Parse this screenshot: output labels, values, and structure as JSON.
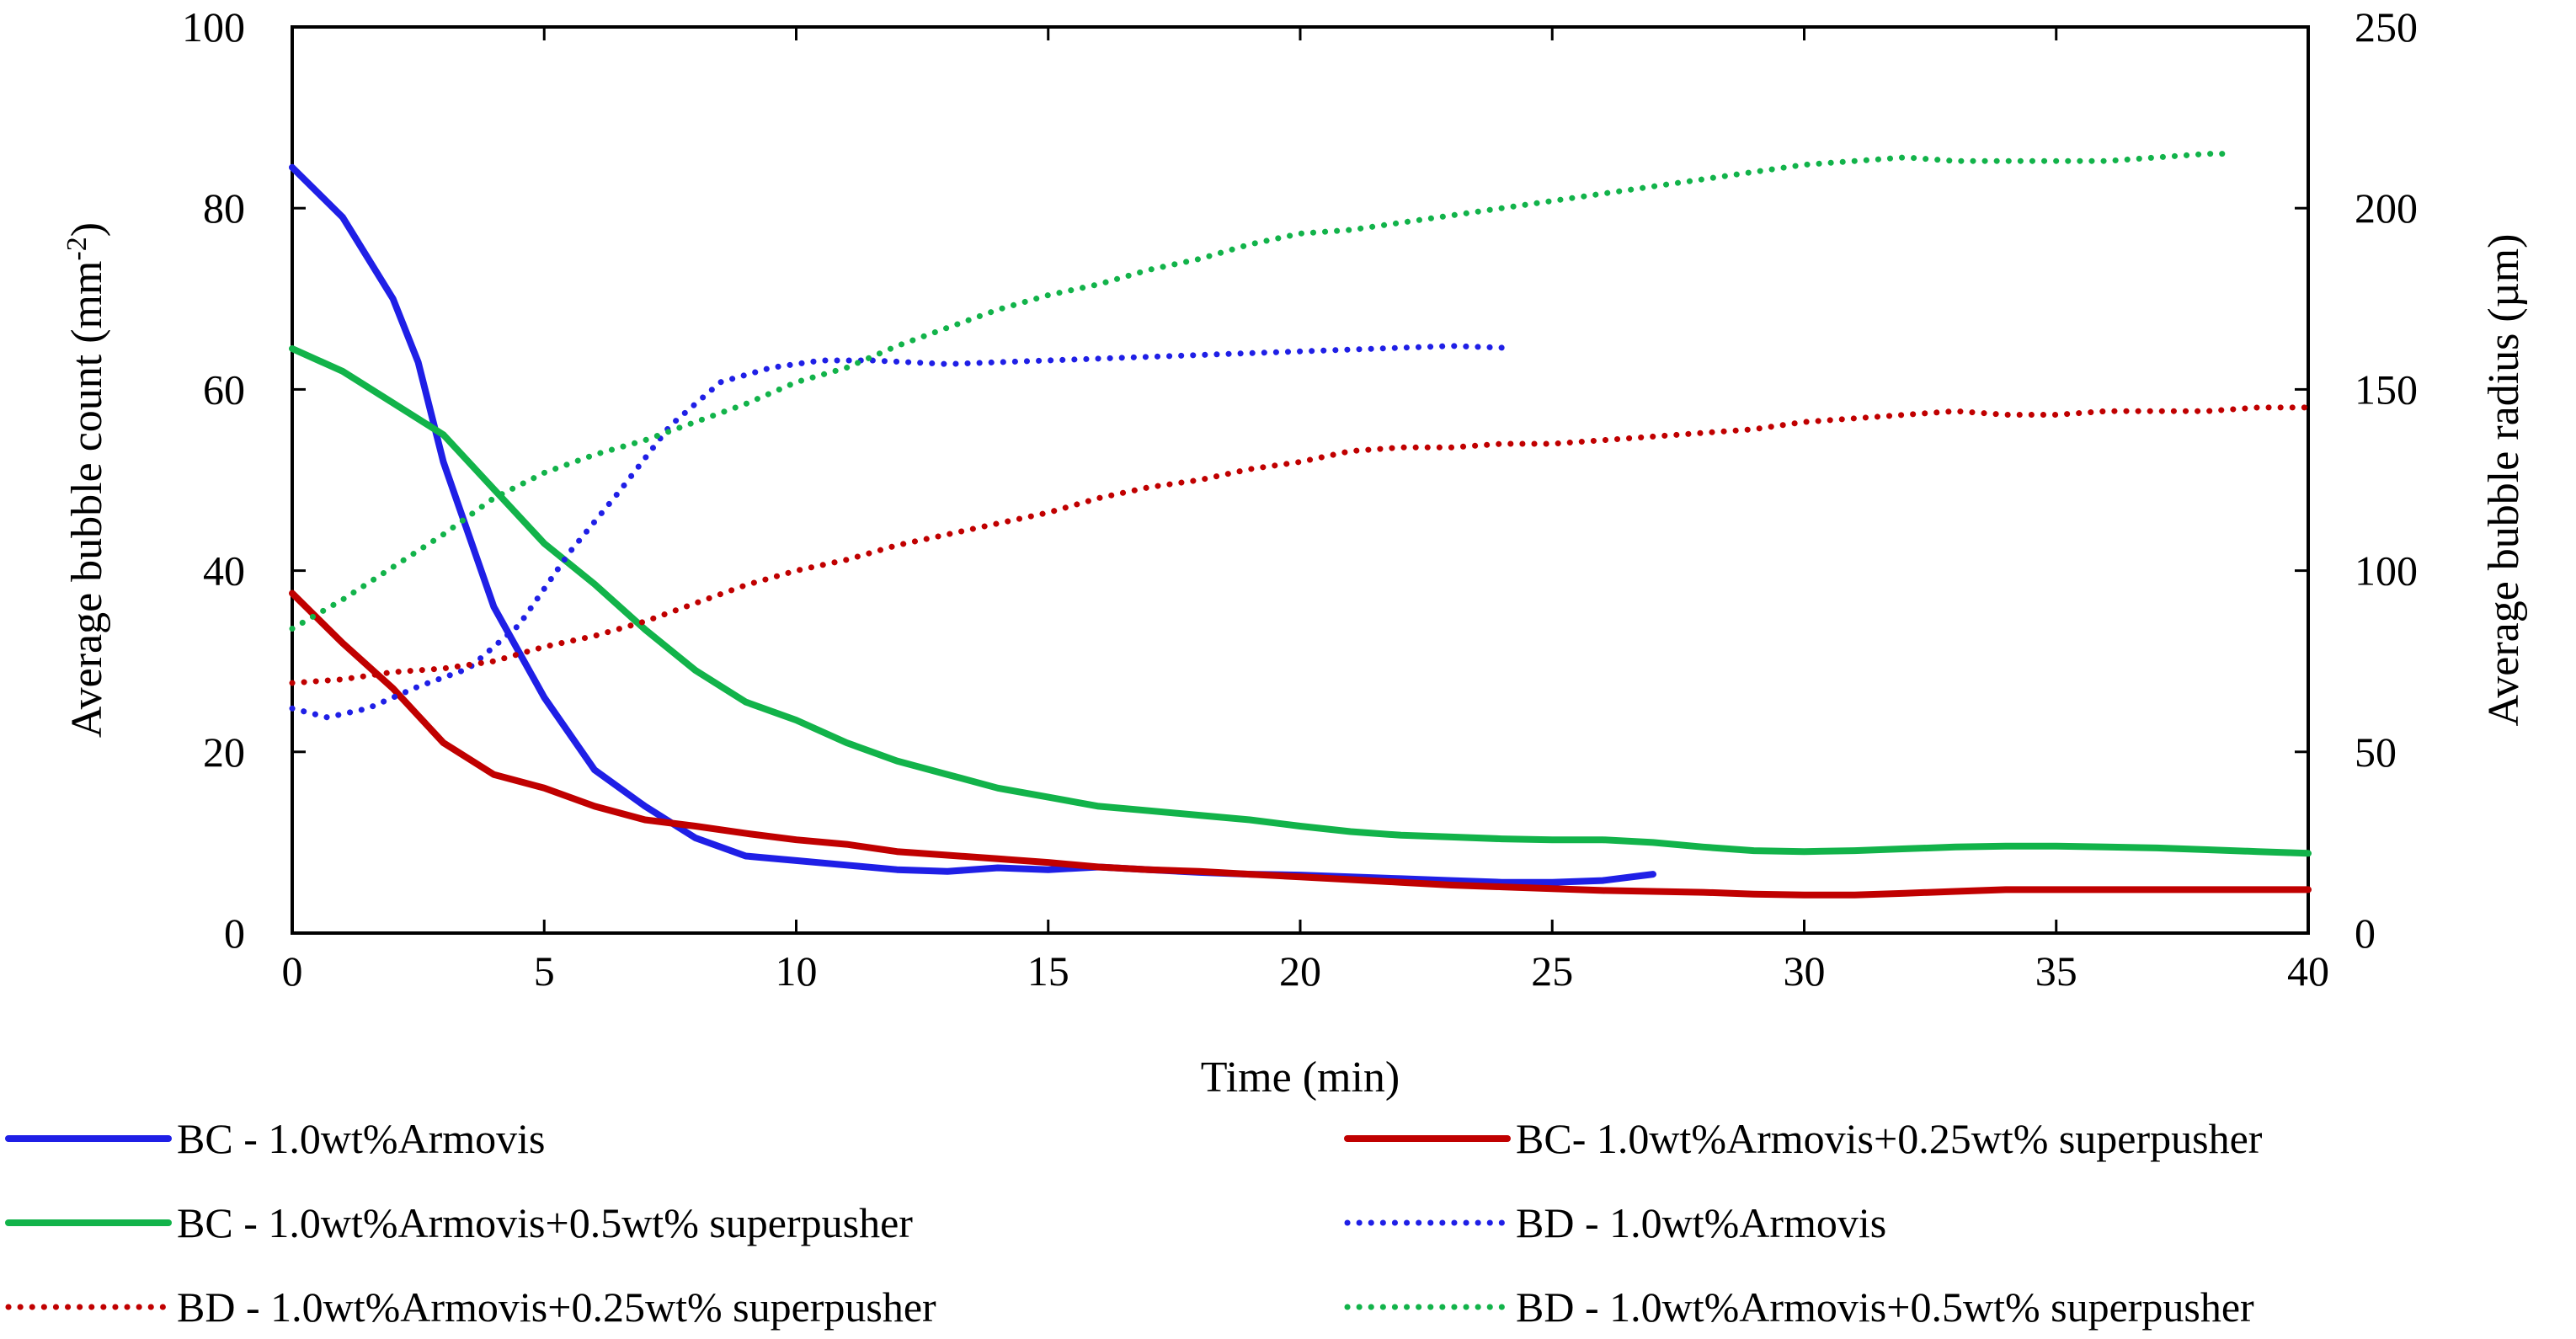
{
  "chart_data": {
    "type": "line",
    "xlabel": "Time (min)",
    "ylabel_left_main": "Average bubble count (mm",
    "ylabel_left_sup": "-2",
    "ylabel_left_tail": ")",
    "ylabel_right": "Average bubble radius (µm)",
    "xlim": [
      0,
      40
    ],
    "ylim_left": [
      0,
      100
    ],
    "ylim_right": [
      0,
      250
    ],
    "x_ticks": [
      "0",
      "5",
      "10",
      "15",
      "20",
      "25",
      "30",
      "35",
      "40"
    ],
    "y_left_ticks": [
      "0",
      "20",
      "40",
      "60",
      "80",
      "100"
    ],
    "y_right_ticks": [
      "0",
      "50",
      "100",
      "150",
      "200",
      "250"
    ],
    "grid": false,
    "legend_position": "bottom",
    "series": [
      {
        "name": "BC - 1.0wt%Armovis",
        "color": "#1f1fe6",
        "dashed": false,
        "axis": "left",
        "points": [
          [
            0,
            84.5
          ],
          [
            1,
            79
          ],
          [
            2,
            70
          ],
          [
            2.5,
            63
          ],
          [
            3,
            52
          ],
          [
            4,
            36
          ],
          [
            5,
            26
          ],
          [
            6,
            18
          ],
          [
            7,
            14
          ],
          [
            8,
            10.5
          ],
          [
            9,
            8.5
          ],
          [
            10,
            8
          ],
          [
            11,
            7.5
          ],
          [
            12,
            7
          ],
          [
            13,
            6.8
          ],
          [
            14,
            7.2
          ],
          [
            15,
            7
          ],
          [
            16,
            7.3
          ],
          [
            17,
            7
          ],
          [
            18,
            6.7
          ],
          [
            19,
            6.5
          ],
          [
            20,
            6.4
          ],
          [
            21,
            6.2
          ],
          [
            22,
            6
          ],
          [
            23,
            5.8
          ],
          [
            24,
            5.6
          ],
          [
            25,
            5.6
          ],
          [
            26,
            5.8
          ],
          [
            27,
            6.5
          ]
        ]
      },
      {
        "name": "BC- 1.0wt%Armovis+0.25wt% superpusher",
        "color": "#c00000",
        "dashed": false,
        "axis": "left",
        "points": [
          [
            0,
            37.5
          ],
          [
            1,
            32
          ],
          [
            2,
            27
          ],
          [
            2.5,
            24
          ],
          [
            3,
            21
          ],
          [
            4,
            17.5
          ],
          [
            5,
            16
          ],
          [
            6,
            14
          ],
          [
            7,
            12.5
          ],
          [
            8,
            11.8
          ],
          [
            9,
            11
          ],
          [
            10,
            10.3
          ],
          [
            11,
            9.8
          ],
          [
            12,
            9
          ],
          [
            13,
            8.6
          ],
          [
            14,
            8.2
          ],
          [
            15,
            7.8
          ],
          [
            16,
            7.3
          ],
          [
            17,
            7
          ],
          [
            18,
            6.8
          ],
          [
            19,
            6.5
          ],
          [
            20,
            6.2
          ],
          [
            21,
            5.9
          ],
          [
            22,
            5.6
          ],
          [
            23,
            5.3
          ],
          [
            24,
            5.1
          ],
          [
            25,
            4.9
          ],
          [
            26,
            4.7
          ],
          [
            27,
            4.6
          ],
          [
            28,
            4.5
          ],
          [
            29,
            4.3
          ],
          [
            30,
            4.2
          ],
          [
            31,
            4.2
          ],
          [
            32,
            4.4
          ],
          [
            33,
            4.6
          ],
          [
            34,
            4.8
          ],
          [
            35,
            4.8
          ],
          [
            36,
            4.8
          ],
          [
            37,
            4.8
          ],
          [
            38,
            4.8
          ],
          [
            39,
            4.8
          ],
          [
            40,
            4.8
          ]
        ]
      },
      {
        "name": "BC -  1.0wt%Armovis+0.5wt% superpusher",
        "color": "#12b34a",
        "dashed": false,
        "axis": "left",
        "points": [
          [
            0,
            64.5
          ],
          [
            1,
            62
          ],
          [
            2,
            58.5
          ],
          [
            3,
            55
          ],
          [
            4,
            49
          ],
          [
            5,
            43
          ],
          [
            6,
            38.5
          ],
          [
            7,
            33.5
          ],
          [
            8,
            29
          ],
          [
            9,
            25.5
          ],
          [
            10,
            23.5
          ],
          [
            11,
            21
          ],
          [
            12,
            19
          ],
          [
            13,
            17.5
          ],
          [
            14,
            16
          ],
          [
            15,
            15
          ],
          [
            16,
            14
          ],
          [
            17,
            13.5
          ],
          [
            18,
            13
          ],
          [
            19,
            12.5
          ],
          [
            20,
            11.8
          ],
          [
            21,
            11.2
          ],
          [
            22,
            10.8
          ],
          [
            23,
            10.6
          ],
          [
            24,
            10.4
          ],
          [
            25,
            10.3
          ],
          [
            26,
            10.3
          ],
          [
            27,
            10
          ],
          [
            28,
            9.5
          ],
          [
            29,
            9.1
          ],
          [
            30,
            9
          ],
          [
            31,
            9.1
          ],
          [
            32,
            9.3
          ],
          [
            33,
            9.5
          ],
          [
            34,
            9.6
          ],
          [
            35,
            9.6
          ],
          [
            36,
            9.5
          ],
          [
            37,
            9.4
          ],
          [
            38,
            9.2
          ],
          [
            39,
            9
          ],
          [
            40,
            8.8
          ]
        ]
      },
      {
        "name": "BD - 1.0wt%Armovis",
        "color": "#1f1fe6",
        "dashed": true,
        "axis": "right",
        "points": [
          [
            0,
            62
          ],
          [
            0.7,
            59.5
          ],
          [
            1.5,
            62
          ],
          [
            2.5,
            68
          ],
          [
            3.5,
            73
          ],
          [
            4.5,
            85
          ],
          [
            5.5,
            105
          ],
          [
            6.5,
            122
          ],
          [
            7.5,
            140
          ],
          [
            8.5,
            152
          ],
          [
            9.5,
            156
          ],
          [
            10.5,
            158
          ],
          [
            11.5,
            158
          ],
          [
            13,
            157
          ],
          [
            15,
            158
          ],
          [
            17,
            159
          ],
          [
            19,
            160
          ],
          [
            21,
            161
          ],
          [
            23,
            162
          ],
          [
            24,
            161.5
          ]
        ]
      },
      {
        "name": "BD - 1.0wt%Armovis+0.25wt% superpusher",
        "color": "#c00000",
        "dashed": true,
        "axis": "right",
        "points": [
          [
            0,
            69
          ],
          [
            1,
            70
          ],
          [
            2,
            72
          ],
          [
            3,
            73
          ],
          [
            4,
            75
          ],
          [
            5,
            79
          ],
          [
            6,
            82
          ],
          [
            7,
            86
          ],
          [
            8,
            91
          ],
          [
            9,
            96
          ],
          [
            10,
            100
          ],
          [
            11,
            103
          ],
          [
            12,
            107
          ],
          [
            13,
            110
          ],
          [
            14,
            113
          ],
          [
            15,
            116
          ],
          [
            16,
            120
          ],
          [
            17,
            123
          ],
          [
            18,
            125
          ],
          [
            19,
            128
          ],
          [
            20,
            130
          ],
          [
            21,
            133
          ],
          [
            22,
            134
          ],
          [
            23,
            134
          ],
          [
            24,
            135
          ],
          [
            25,
            135
          ],
          [
            26,
            136
          ],
          [
            27,
            137
          ],
          [
            28,
            138
          ],
          [
            29,
            139
          ],
          [
            30,
            141
          ],
          [
            31,
            142
          ],
          [
            32,
            143
          ],
          [
            33,
            144
          ],
          [
            34,
            143
          ],
          [
            35,
            143
          ],
          [
            36,
            144
          ],
          [
            37,
            144
          ],
          [
            38,
            144
          ],
          [
            39,
            145
          ],
          [
            40,
            145
          ]
        ]
      },
      {
        "name": "BD - 1.0wt%Armovis+0.5wt% superpusher",
        "color": "#12b34a",
        "dashed": true,
        "axis": "right",
        "points": [
          [
            0,
            84
          ],
          [
            1,
            92
          ],
          [
            2,
            101
          ],
          [
            3,
            110
          ],
          [
            4,
            120
          ],
          [
            5,
            127
          ],
          [
            6,
            132
          ],
          [
            7,
            136
          ],
          [
            8,
            141
          ],
          [
            9,
            146
          ],
          [
            10,
            152
          ],
          [
            11,
            156
          ],
          [
            12,
            162
          ],
          [
            13,
            167
          ],
          [
            14,
            172
          ],
          [
            15,
            176
          ],
          [
            16,
            179
          ],
          [
            17,
            183
          ],
          [
            18,
            186
          ],
          [
            19,
            190
          ],
          [
            20,
            193
          ],
          [
            21,
            194
          ],
          [
            22,
            196
          ],
          [
            23,
            198
          ],
          [
            24,
            200
          ],
          [
            25,
            202
          ],
          [
            26,
            204
          ],
          [
            27,
            206
          ],
          [
            28,
            208
          ],
          [
            29,
            210
          ],
          [
            30,
            212
          ],
          [
            31,
            213
          ],
          [
            32,
            214
          ],
          [
            33,
            213
          ],
          [
            34,
            213
          ],
          [
            35,
            213
          ],
          [
            36,
            213
          ],
          [
            37,
            214
          ],
          [
            38,
            215
          ],
          [
            38.5,
            215
          ]
        ]
      }
    ]
  }
}
